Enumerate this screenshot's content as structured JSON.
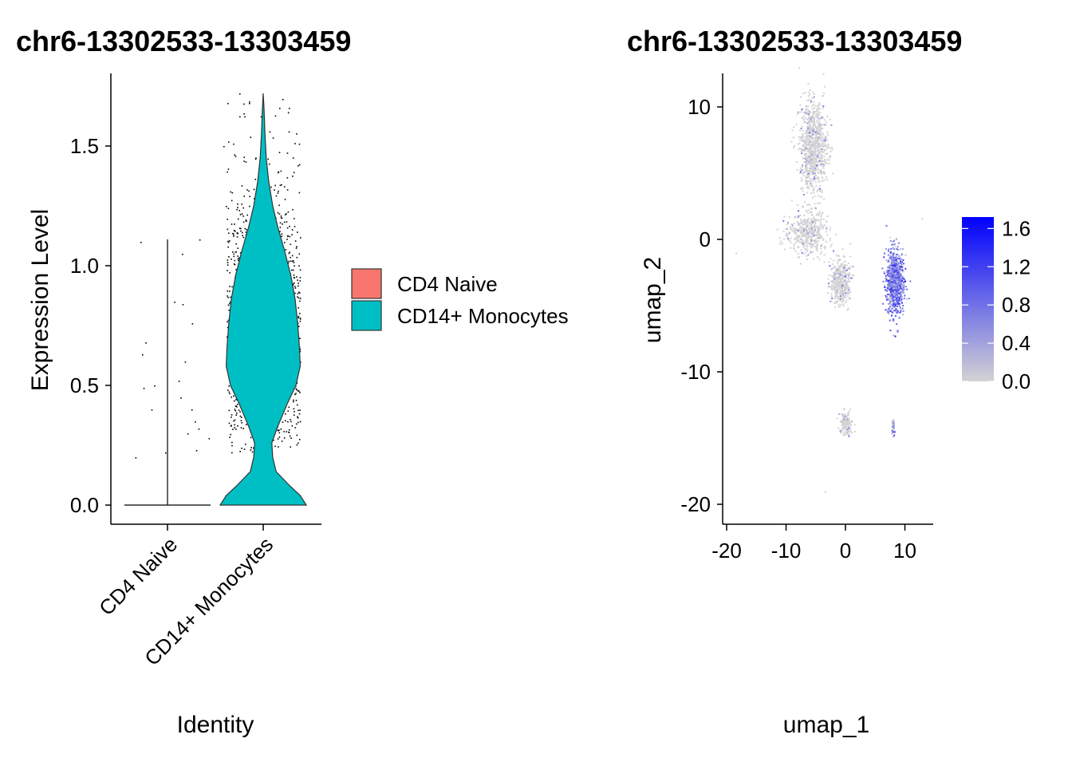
{
  "chart_data": [
    {
      "type": "violin",
      "title": "chr6-13302533-13303459",
      "xlabel": "Identity",
      "ylabel": "Expression Level",
      "categories": [
        "CD4 Naive",
        "CD14+ Monocytes"
      ],
      "ylim": [
        -0.08,
        1.73
      ],
      "yticks": [
        0.0,
        0.5,
        1.0,
        1.5
      ],
      "ytick_labels": [
        "0.0",
        "0.5",
        "1.0",
        "1.5"
      ],
      "legend": {
        "position": "right",
        "entries": [
          {
            "label": "CD4 Naive",
            "color": "#F8766D"
          },
          {
            "label": "CD14+ Monocytes",
            "color": "#00BFC4"
          }
        ]
      },
      "series": [
        {
          "name": "CD4 Naive",
          "color": "#F8766D",
          "max": 1.11,
          "density": [
            [
              0.0,
              1.0
            ],
            [
              0.02,
              0.0
            ],
            [
              1.11,
              0.0
            ]
          ],
          "sample_points": [
            0.45,
            0.4,
            0.52,
            0.28,
            0.84,
            1.05,
            1.1,
            1.11,
            0.6,
            0.35,
            0.3,
            0.5,
            0.76,
            0.63,
            0.85,
            0.68,
            0.49,
            0.4,
            0.32,
            0.23,
            0.2,
            0.22
          ]
        },
        {
          "name": "CD14+ Monocytes",
          "color": "#00BFC4",
          "max": 1.72,
          "density": [
            [
              0.0,
              1.0
            ],
            [
              0.04,
              0.86
            ],
            [
              0.08,
              0.62
            ],
            [
              0.14,
              0.3
            ],
            [
              0.2,
              0.22
            ],
            [
              0.26,
              0.2
            ],
            [
              0.33,
              0.34
            ],
            [
              0.42,
              0.55
            ],
            [
              0.5,
              0.76
            ],
            [
              0.58,
              0.86
            ],
            [
              0.66,
              0.84
            ],
            [
              0.76,
              0.8
            ],
            [
              0.86,
              0.74
            ],
            [
              0.96,
              0.64
            ],
            [
              1.06,
              0.5
            ],
            [
              1.16,
              0.34
            ],
            [
              1.25,
              0.22
            ],
            [
              1.35,
              0.13
            ],
            [
              1.45,
              0.07
            ],
            [
              1.55,
              0.04
            ],
            [
              1.65,
              0.02
            ],
            [
              1.72,
              0.0
            ]
          ],
          "jitter_points_approx": 1400
        }
      ]
    },
    {
      "type": "scatter",
      "title": "chr6-13302533-13303459",
      "xlabel": "umap_1",
      "ylabel": "umap_2",
      "xlim": [
        -20.5,
        14
      ],
      "ylim": [
        -21.5,
        12.5
      ],
      "xticks": [
        -20,
        -10,
        0,
        10
      ],
      "xtick_labels": [
        "-20",
        "-10",
        "0",
        "10"
      ],
      "yticks": [
        10,
        0,
        -10,
        -20
      ],
      "ytick_labels": [
        "10",
        "0",
        "-10",
        "-20"
      ],
      "colorbar": {
        "range": [
          0,
          1.72
        ],
        "ticks": [
          0.0,
          0.4,
          0.8,
          1.2,
          1.6
        ],
        "tick_labels": [
          "0.0",
          "0.4",
          "0.8",
          "1.2",
          "1.6"
        ],
        "low_color": "#D3D3D3",
        "high_color": "#0000FF"
      },
      "clusters": [
        {
          "name": "top cluster",
          "center": [
            -5.5,
            7.0
          ],
          "spread": [
            2.0,
            2.8
          ],
          "n": 900,
          "expr_mean": 0.03
        },
        {
          "name": "left cluster",
          "center": [
            -6.5,
            0.5
          ],
          "spread": [
            2.8,
            1.4
          ],
          "n": 450,
          "expr_mean": 0.05
        },
        {
          "name": "middle cluster",
          "center": [
            -1.0,
            -3.2
          ],
          "spread": [
            1.4,
            1.5
          ],
          "n": 420,
          "expr_mean": 0.06
        },
        {
          "name": "monocyte cluster",
          "center": [
            8.2,
            -3.2
          ],
          "spread": [
            1.2,
            2.0
          ],
          "n": 800,
          "expr_mean": 0.75
        },
        {
          "name": "lower cluster",
          "center": [
            0.0,
            -13.9
          ],
          "spread": [
            0.9,
            0.8
          ],
          "n": 140,
          "expr_mean": 0.08
        },
        {
          "name": "lower right strand",
          "center": [
            7.9,
            -14.2
          ],
          "spread": [
            0.2,
            0.7
          ],
          "n": 40,
          "expr_mean": 0.4
        }
      ]
    }
  ]
}
